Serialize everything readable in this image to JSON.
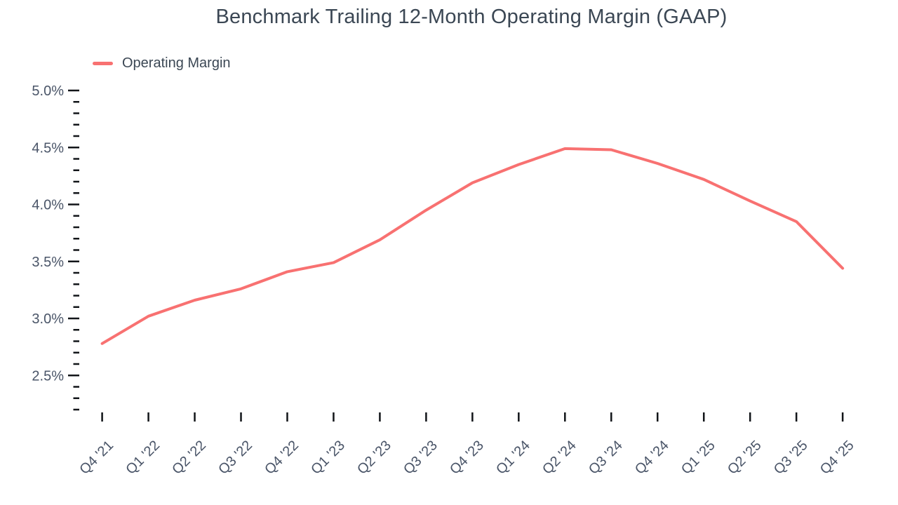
{
  "chart_data": {
    "type": "line",
    "title": "Benchmark Trailing 12-Month Operating Margin (GAAP)",
    "categories": [
      "Q4 '21",
      "Q1 '22",
      "Q2 '22",
      "Q3 '22",
      "Q4 '22",
      "Q1 '23",
      "Q2 '23",
      "Q3 '23",
      "Q4 '23",
      "Q1 '24",
      "Q2 '24",
      "Q3 '24",
      "Q4 '24",
      "Q1 '25",
      "Q2 '25",
      "Q3 '25",
      "Q4 '25"
    ],
    "series": [
      {
        "name": "Operating Margin",
        "color": "#f87171",
        "values": [
          2.78,
          3.02,
          3.16,
          3.26,
          3.41,
          3.49,
          3.69,
          3.95,
          4.19,
          4.35,
          4.49,
          4.48,
          4.36,
          4.22,
          4.03,
          3.85,
          3.44
        ]
      }
    ],
    "xlabel": "",
    "ylabel": "",
    "y_unit": "%",
    "y_major_ticks": [
      5.0,
      4.5,
      4.0,
      3.5,
      3.0,
      2.5
    ],
    "y_tick_labels": [
      "5.0%",
      "4.5%",
      "4.0%",
      "3.5%",
      "3.0%",
      "2.5%"
    ],
    "y_minor_step": 0.1,
    "ylim": [
      2.2,
      5.0
    ],
    "grid": false,
    "legend_position": "top-left",
    "colors": {
      "line": "#f87171",
      "tick": "#121519",
      "axis_label": "#4a5568",
      "title": "#3b4754"
    }
  }
}
